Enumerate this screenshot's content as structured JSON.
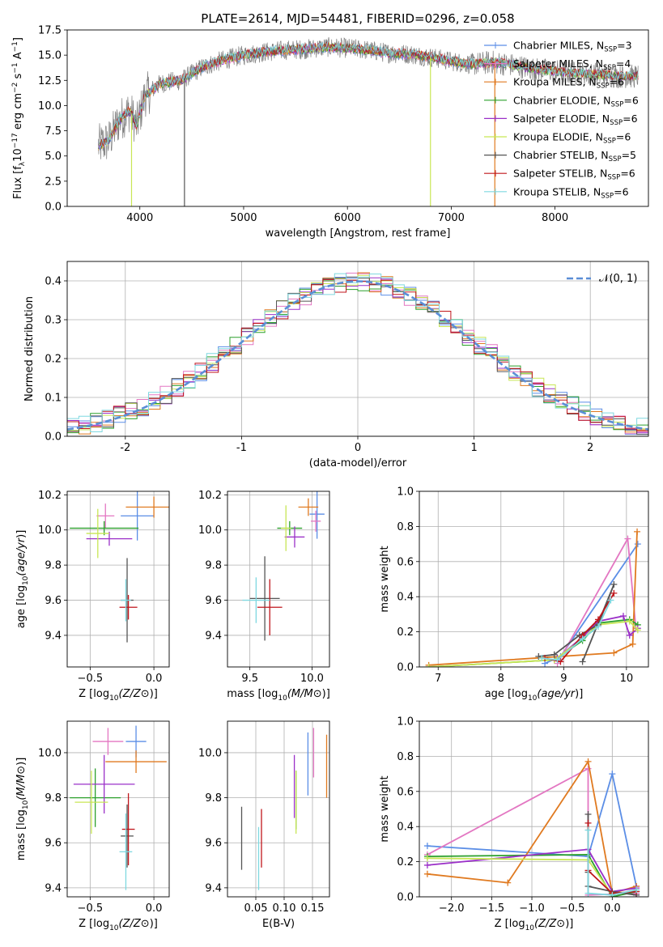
{
  "figure": {
    "title": "PLATE=2614, MJD=54481, FIBERID=0296, z=0.058"
  },
  "colors": {
    "Chabrier MILES": "#5b8ee6",
    "Salpeter MILES": "#e377c2",
    "Kroupa MILES": "#e07a20",
    "Chabrier ELODIE": "#2ca02c",
    "Salpeter ELODIE": "#9b30c8",
    "Kroupa ELODIE": "#c8e655",
    "Chabrier STELIB": "#555555",
    "Salpeter STELIB": "#c0161b",
    "Kroupa STELIB": "#7fd8e0",
    "data": "#7f7f7f",
    "normal": "#5b8ed6"
  },
  "chart_data": [
    {
      "id": "spectrum",
      "type": "line",
      "title": "PLATE=2614, MJD=54481, FIBERID=0296, z=0.058",
      "xlabel": "wavelength [Angstrom, rest frame]",
      "ylabel": "Flux [f_λ 10^-17 erg cm^-2 s^-1 A^-1]",
      "xlim": [
        3300,
        8900
      ],
      "ylim": [
        0,
        17.5
      ],
      "xticks": [
        4000,
        5000,
        6000,
        7000,
        8000
      ],
      "yticks": [
        0.0,
        2.5,
        5.0,
        7.5,
        10.0,
        12.5,
        15.0,
        17.5
      ],
      "continuum": [
        [
          3600,
          6.0
        ],
        [
          3700,
          6.5
        ],
        [
          3800,
          8.5
        ],
        [
          3900,
          9.5
        ],
        [
          3970,
          8.0
        ],
        [
          4050,
          11.0
        ],
        [
          4200,
          12.2
        ],
        [
          4400,
          12.5
        ],
        [
          4600,
          13.8
        ],
        [
          4800,
          14.5
        ],
        [
          5000,
          15.0
        ],
        [
          5200,
          15.3
        ],
        [
          5400,
          15.5
        ],
        [
          5600,
          15.6
        ],
        [
          5800,
          15.8
        ],
        [
          6000,
          15.7
        ],
        [
          6200,
          15.5
        ],
        [
          6400,
          15.2
        ],
        [
          6600,
          15.1
        ],
        [
          6800,
          14.8
        ],
        [
          7000,
          14.4
        ],
        [
          7200,
          14.1
        ],
        [
          7400,
          14.3
        ],
        [
          7600,
          14.0
        ],
        [
          7800,
          13.6
        ],
        [
          8000,
          13.4
        ],
        [
          8200,
          13.2
        ],
        [
          8400,
          13.1
        ],
        [
          8600,
          12.9
        ],
        [
          8800,
          12.9
        ]
      ],
      "dips": [
        {
          "x": 3920,
          "label": "Kroupa ELODIE"
        },
        {
          "x": 4430,
          "label": "Chabrier STELIB"
        },
        {
          "x": 6800,
          "label": "Kroupa ELODIE"
        },
        {
          "x": 7420,
          "label": "Kroupa MILES"
        }
      ],
      "legend": {
        "position": "right",
        "entries": [
          {
            "label": "Chabrier MILES, N",
            "sub": "SSP",
            "suffix": "=3",
            "series": "Chabrier MILES"
          },
          {
            "label": "Salpeter MILES, N",
            "sub": "SSP",
            "suffix": "=4",
            "series": "Salpeter MILES"
          },
          {
            "label": "Kroupa MILES, N",
            "sub": "SSP",
            "suffix": "=6",
            "series": "Kroupa MILES"
          },
          {
            "label": "Chabrier ELODIE, N",
            "sub": "SSP",
            "suffix": "=6",
            "series": "Chabrier ELODIE"
          },
          {
            "label": "Salpeter ELODIE, N",
            "sub": "SSP",
            "suffix": "=6",
            "series": "Salpeter ELODIE"
          },
          {
            "label": "Kroupa ELODIE, N",
            "sub": "SSP",
            "suffix": "=6",
            "series": "Kroupa ELODIE"
          },
          {
            "label": "Chabrier STELIB, N",
            "sub": "SSP",
            "suffix": "=5",
            "series": "Chabrier STELIB"
          },
          {
            "label": "Salpeter STELIB, N",
            "sub": "SSP",
            "suffix": "=6",
            "series": "Salpeter STELIB"
          },
          {
            "label": "Kroupa STELIB, N",
            "sub": "SSP",
            "suffix": "=6",
            "series": "Kroupa STELIB"
          }
        ]
      }
    },
    {
      "id": "residuals",
      "type": "area",
      "xlabel": "(data-model)/error",
      "ylabel": "Normed distribution",
      "xlim": [
        -2.5,
        2.5
      ],
      "ylim": [
        0,
        0.45
      ],
      "xticks": [
        -2,
        -1,
        0,
        1,
        2
      ],
      "yticks": [
        0.0,
        0.1,
        0.2,
        0.3,
        0.4
      ],
      "grid": true,
      "bin_width": 0.1,
      "legend": {
        "position": "top-right",
        "label": "𝒩(0, 1)"
      },
      "normal_curve": {
        "mean": 0,
        "sigma": 1
      }
    },
    {
      "id": "z_age",
      "type": "scatter",
      "xlabel": "Z [log10(Z/Z⊙)]",
      "ylabel": "age [log10(age/yr)]",
      "xlim": [
        -0.68,
        0.12
      ],
      "ylim": [
        9.22,
        10.22
      ],
      "xticks": [
        -0.5,
        0.0
      ],
      "xticklabels": [
        "−0.5",
        "0.0"
      ],
      "yticks": [
        9.4,
        9.6,
        9.8,
        10.0,
        10.2
      ],
      "grid": true,
      "points": [
        {
          "series": "Chabrier MILES",
          "x": -0.13,
          "y": 10.08,
          "xerr": 0.13,
          "yerr": 0.14
        },
        {
          "series": "Salpeter MILES",
          "x": -0.38,
          "y": 10.08,
          "xerr": 0.07,
          "yerr": 0.07
        },
        {
          "series": "Kroupa MILES",
          "x": 0.0,
          "y": 10.13,
          "xerr": 0.22,
          "yerr": 0.06
        },
        {
          "series": "Chabrier ELODIE",
          "x": -0.39,
          "y": 10.01,
          "xerr": 0.27,
          "yerr": 0.04
        },
        {
          "series": "Salpeter ELODIE",
          "x": -0.35,
          "y": 9.95,
          "xerr": 0.18,
          "yerr": 0.04
        },
        {
          "series": "Kroupa ELODIE",
          "x": -0.44,
          "y": 9.98,
          "xerr": 0.09,
          "yerr": 0.14
        },
        {
          "series": "Chabrier STELIB",
          "x": -0.21,
          "y": 9.6,
          "xerr": 0.05,
          "yerr": 0.24
        },
        {
          "series": "Salpeter STELIB",
          "x": -0.2,
          "y": 9.56,
          "xerr": 0.07,
          "yerr": 0.07
        },
        {
          "series": "Kroupa STELIB",
          "x": -0.22,
          "y": 9.6,
          "xerr": 0.04,
          "yerr": 0.12
        }
      ]
    },
    {
      "id": "mass_age",
      "type": "scatter",
      "xlabel": "mass [log10(M/M⊙)]",
      "xlim": [
        9.32,
        10.14
      ],
      "ylim": [
        9.22,
        10.22
      ],
      "xticks": [
        9.5,
        10.0
      ],
      "yticks": [
        9.4,
        9.6,
        9.8,
        10.0,
        10.2
      ],
      "grid": true,
      "points": [
        {
          "series": "Chabrier MILES",
          "x": 10.04,
          "y": 10.09,
          "xerr": 0.06,
          "yerr": 0.14
        },
        {
          "series": "Salpeter MILES",
          "x": 10.03,
          "y": 10.05,
          "xerr": 0.04,
          "yerr": 0.06
        },
        {
          "series": "Kroupa MILES",
          "x": 9.97,
          "y": 10.13,
          "xerr": 0.08,
          "yerr": 0.05
        },
        {
          "series": "Chabrier ELODIE",
          "x": 9.82,
          "y": 10.01,
          "xerr": 0.1,
          "yerr": 0.04
        },
        {
          "series": "Salpeter ELODIE",
          "x": 9.86,
          "y": 9.96,
          "xerr": 0.08,
          "yerr": 0.06
        },
        {
          "series": "Kroupa ELODIE",
          "x": 9.79,
          "y": 10.01,
          "xerr": 0.04,
          "yerr": 0.13
        },
        {
          "series": "Chabrier STELIB",
          "x": 9.62,
          "y": 9.61,
          "xerr": 0.12,
          "yerr": 0.24
        },
        {
          "series": "Salpeter STELIB",
          "x": 9.66,
          "y": 9.56,
          "xerr": 0.1,
          "yerr": 0.16
        },
        {
          "series": "Kroupa STELIB",
          "x": 9.55,
          "y": 9.6,
          "xerr": 0.11,
          "yerr": 0.13
        }
      ]
    },
    {
      "id": "age_weight",
      "type": "line",
      "xlabel": "age [log10(age/yr)]",
      "ylabel": "mass weight",
      "xlim": [
        6.7,
        10.35
      ],
      "ylim": [
        0,
        1.0
      ],
      "xticks": [
        7,
        8,
        9,
        10
      ],
      "yticks": [
        0.0,
        0.2,
        0.4,
        0.6,
        0.8,
        1.0
      ],
      "grid": true,
      "series": [
        {
          "name": "Chabrier MILES",
          "x": [
            8.7,
            8.95,
            10.18
          ],
          "y": [
            0.02,
            0.06,
            0.7
          ]
        },
        {
          "name": "Salpeter MILES",
          "x": [
            8.9,
            10.02,
            10.15
          ],
          "y": [
            0.02,
            0.73,
            0.22
          ]
        },
        {
          "name": "Kroupa MILES",
          "x": [
            6.85,
            9.8,
            10.1,
            10.17
          ],
          "y": [
            0.01,
            0.08,
            0.13,
            0.77
          ]
        },
        {
          "name": "Chabrier ELODIE",
          "x": [
            6.85,
            8.85,
            9.3,
            9.55,
            10.05,
            10.18
          ],
          "y": [
            0.0,
            0.04,
            0.15,
            0.25,
            0.27,
            0.24
          ]
        },
        {
          "name": "Salpeter ELODIE",
          "x": [
            8.9,
            9.3,
            9.55,
            9.95,
            10.05,
            10.18
          ],
          "y": [
            0.05,
            0.17,
            0.26,
            0.29,
            0.18,
            0.22
          ]
        },
        {
          "name": "Kroupa ELODIE",
          "x": [
            6.85,
            8.85,
            9.3,
            9.55,
            10.05,
            10.18
          ],
          "y": [
            0.0,
            0.04,
            0.16,
            0.24,
            0.26,
            0.21
          ]
        },
        {
          "name": "Chabrier STELIB",
          "x": [
            8.6,
            8.85,
            9.25,
            9.55,
            9.8,
            9.3
          ],
          "y": [
            0.06,
            0.07,
            0.18,
            0.24,
            0.47,
            0.03
          ]
        },
        {
          "name": "Salpeter STELIB",
          "x": [
            8.7,
            8.95,
            9.3,
            9.55,
            9.8
          ],
          "y": [
            0.05,
            0.03,
            0.18,
            0.27,
            0.42
          ]
        },
        {
          "name": "Kroupa STELIB",
          "x": [
            8.65,
            8.9,
            9.3,
            9.55,
            9.75
          ],
          "y": [
            0.05,
            0.04,
            0.16,
            0.23,
            0.38
          ]
        }
      ]
    },
    {
      "id": "z_mass",
      "type": "scatter",
      "xlabel": "Z [log10(Z/Z⊙)]",
      "ylabel": "mass [log10(M/M⊙)]",
      "xlim": [
        -0.68,
        0.12
      ],
      "ylim": [
        9.36,
        10.14
      ],
      "xticks": [
        -0.5,
        0.0
      ],
      "xticklabels": [
        "−0.5",
        "0.0"
      ],
      "yticks": [
        9.4,
        9.6,
        9.8,
        10.0
      ],
      "grid": true,
      "points": [
        {
          "series": "Chabrier MILES",
          "x": -0.14,
          "y": 10.05,
          "xerr": 0.08,
          "yerr": 0.07
        },
        {
          "series": "Salpeter MILES",
          "x": -0.36,
          "y": 10.05,
          "xerr": 0.12,
          "yerr": 0.06
        },
        {
          "series": "Kroupa MILES",
          "x": -0.14,
          "y": 9.96,
          "xerr": 0.24,
          "yerr": 0.05
        },
        {
          "series": "Chabrier ELODIE",
          "x": -0.46,
          "y": 9.8,
          "xerr": 0.2,
          "yerr": 0.13
        },
        {
          "series": "Salpeter ELODIE",
          "x": -0.39,
          "y": 9.86,
          "xerr": 0.24,
          "yerr": 0.13
        },
        {
          "series": "Kroupa ELODIE",
          "x": -0.49,
          "y": 9.78,
          "xerr": 0.13,
          "yerr": 0.14
        },
        {
          "series": "Chabrier STELIB",
          "x": -0.21,
          "y": 9.63,
          "xerr": 0.05,
          "yerr": 0.14
        },
        {
          "series": "Salpeter STELIB",
          "x": -0.2,
          "y": 9.66,
          "xerr": 0.05,
          "yerr": 0.16
        },
        {
          "series": "Kroupa STELIB",
          "x": -0.22,
          "y": 9.56,
          "xerr": 0.05,
          "yerr": 0.17
        }
      ]
    },
    {
      "id": "ebv_mass",
      "type": "scatter",
      "xlabel": "E(B-V)",
      "xlim": [
        0.0,
        0.18
      ],
      "ylim": [
        9.36,
        10.14
      ],
      "xticks": [
        0.05,
        0.1,
        0.15
      ],
      "xticklabels": [
        "0.05",
        "0.10",
        "0.15"
      ],
      "yticks": [
        9.4,
        9.6,
        9.8,
        10.0
      ],
      "grid": true,
      "points": [
        {
          "series": "Chabrier MILES",
          "x": 0.142,
          "y": 9.95,
          "xerr": 0,
          "yerr": 0.14
        },
        {
          "series": "Salpeter MILES",
          "x": 0.152,
          "y": 10.0,
          "xerr": 0,
          "yerr": 0.11
        },
        {
          "series": "Kroupa MILES",
          "x": 0.175,
          "y": 9.94,
          "xerr": 0,
          "yerr": 0.14
        },
        {
          "series": "Chabrier ELODIE",
          "x": 0.121,
          "y": 9.79,
          "xerr": 0,
          "yerr": 0.13
        },
        {
          "series": "Salpeter ELODIE",
          "x": 0.118,
          "y": 9.85,
          "xerr": 0,
          "yerr": 0.14
        },
        {
          "series": "Kroupa ELODIE",
          "x": 0.121,
          "y": 9.78,
          "xerr": 0,
          "yerr": 0.14
        },
        {
          "series": "Chabrier STELIB",
          "x": 0.025,
          "y": 9.62,
          "xerr": 0,
          "yerr": 0.14
        },
        {
          "series": "Salpeter STELIB",
          "x": 0.06,
          "y": 9.62,
          "xerr": 0,
          "yerr": 0.13
        },
        {
          "series": "Kroupa STELIB",
          "x": 0.055,
          "y": 9.53,
          "xerr": 0,
          "yerr": 0.14
        }
      ]
    },
    {
      "id": "z_weight",
      "type": "line",
      "xlabel": "Z [log10(Z/Z⊙)]",
      "ylabel": "mass weight",
      "xlim": [
        -2.4,
        0.45
      ],
      "ylim": [
        0,
        1.0
      ],
      "xticks": [
        -2.0,
        -1.5,
        -1.0,
        -0.5,
        0.0
      ],
      "xticklabels": [
        "−2.0",
        "−1.5",
        "−1.0",
        "−0.5",
        "0.0"
      ],
      "yticks": [
        0.0,
        0.2,
        0.4,
        0.6,
        0.8,
        1.0
      ],
      "grid": true,
      "series": [
        {
          "name": "Chabrier MILES",
          "x": [
            -2.3,
            -0.3,
            0.0,
            0.3,
            0.3
          ],
          "y": [
            0.29,
            0.23,
            0.7,
            0.06,
            0.02
          ]
        },
        {
          "name": "Salpeter MILES",
          "x": [
            -2.3,
            -0.3,
            -0.3,
            0.3,
            0.3
          ],
          "y": [
            0.24,
            0.73,
            0.01,
            0.02,
            0.0
          ]
        },
        {
          "name": "Kroupa MILES",
          "x": [
            -2.3,
            -1.3,
            -0.3,
            0.0,
            0.3
          ],
          "y": [
            0.13,
            0.08,
            0.77,
            0.02,
            0.06
          ]
        },
        {
          "name": "Chabrier ELODIE",
          "x": [
            -2.3,
            -0.3,
            0.0,
            0.3
          ],
          "y": [
            0.23,
            0.24,
            0.0,
            0.03
          ]
        },
        {
          "name": "Salpeter ELODIE",
          "x": [
            -2.3,
            -0.3,
            0.0,
            0.3
          ],
          "y": [
            0.18,
            0.27,
            0.03,
            0.05
          ]
        },
        {
          "name": "Kroupa ELODIE",
          "x": [
            -2.3,
            -0.3,
            0.0,
            0.3
          ],
          "y": [
            0.22,
            0.21,
            0.01,
            0.04
          ]
        },
        {
          "name": "Chabrier STELIB",
          "x": [
            -0.3,
            -0.3,
            -0.3,
            0.0,
            0.3
          ],
          "y": [
            0.47,
            0.14,
            0.06,
            0.03,
            0.01
          ]
        },
        {
          "name": "Salpeter STELIB",
          "x": [
            -0.3,
            -0.3,
            0.0,
            0.3
          ],
          "y": [
            0.42,
            0.15,
            0.02,
            0.03
          ]
        },
        {
          "name": "Kroupa STELIB",
          "x": [
            -0.3,
            -0.3,
            0.0,
            0.3
          ],
          "y": [
            0.38,
            0.02,
            0.01,
            0.04
          ]
        }
      ]
    }
  ]
}
